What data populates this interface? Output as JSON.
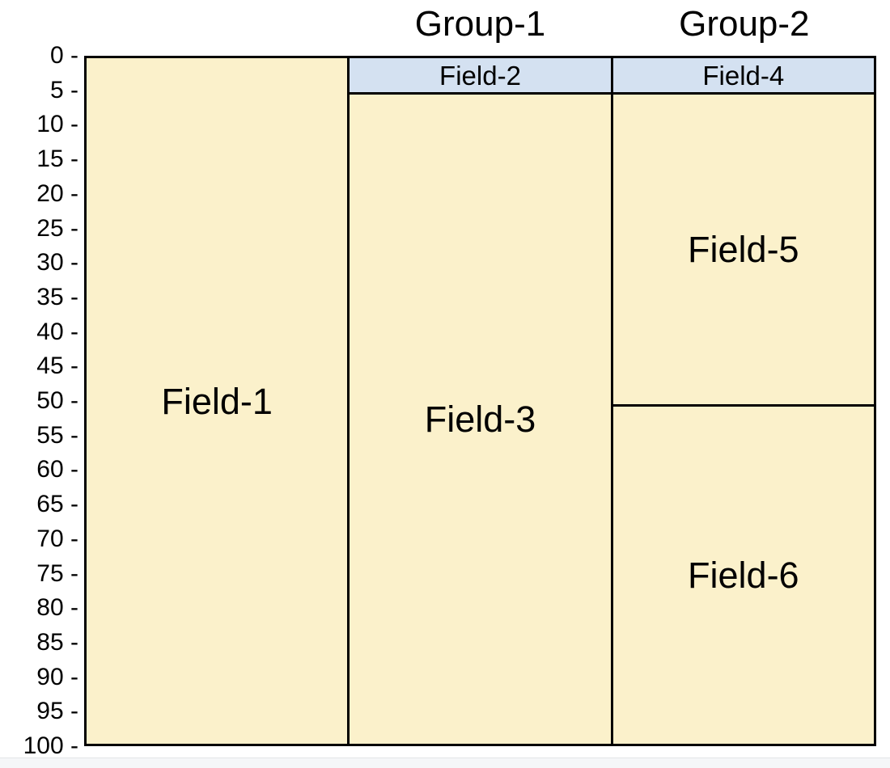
{
  "page": {
    "background": "#ffffff",
    "footer_strip": {
      "color": "#f5f6f8",
      "border_color": "#e3e5e8"
    }
  },
  "chart_data": {
    "type": "bar",
    "subtype": "stacked column sections (well-schematic / icicle style mosaic)",
    "title": "",
    "xlabel": "",
    "ylabel": "",
    "yaxis": {
      "min": 0,
      "max": 100,
      "tick_step": 5,
      "tick_mark": "-",
      "inverted": true
    },
    "grid": false,
    "legend": false,
    "colors": {
      "section_fill": "#fbf1cb",
      "band_fill": "#d4e1f1",
      "border": "#000000",
      "text": "#000000"
    },
    "columns": [
      {
        "group_label": "",
        "segments": [
          {
            "label": "Field-1",
            "start": 0,
            "end": 100,
            "fill": "section"
          }
        ]
      },
      {
        "group_label": "Group-1",
        "segments": [
          {
            "label": "Field-2",
            "start": 0,
            "end": 5,
            "fill": "band"
          },
          {
            "label": "Field-3",
            "start": 5,
            "end": 100,
            "fill": "section"
          }
        ]
      },
      {
        "group_label": "Group-2",
        "segments": [
          {
            "label": "Field-4",
            "start": 0,
            "end": 5,
            "fill": "band"
          },
          {
            "label": "Field-5",
            "start": 5,
            "end": 50.5,
            "fill": "section"
          },
          {
            "label": "Field-6",
            "start": 50.5,
            "end": 100,
            "fill": "section"
          }
        ]
      }
    ]
  }
}
